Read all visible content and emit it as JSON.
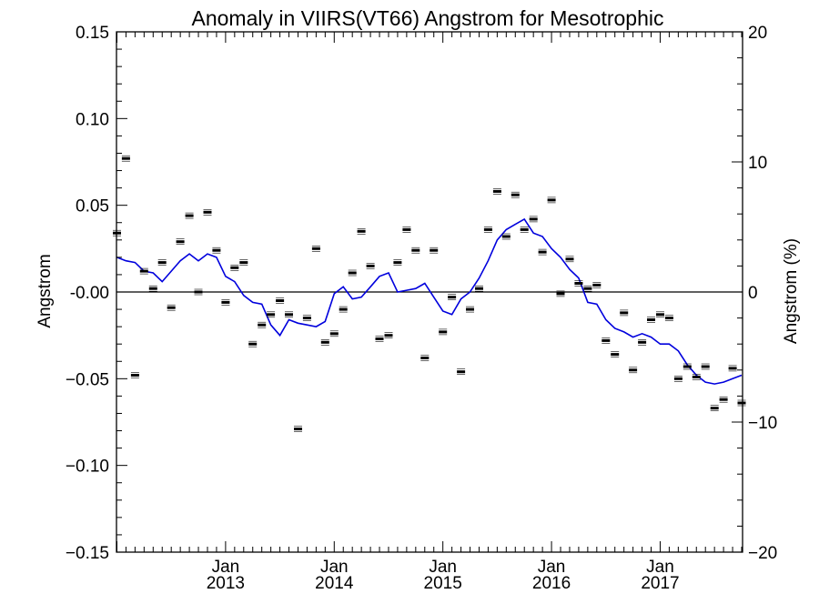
{
  "chart_data": {
    "type": "scatter",
    "title": "Anomaly in VIIRS(VT66) Angstrom for Mesotrophic",
    "ylabel": "Angstrom",
    "y2label": "Angstrom (%)",
    "ylim": [
      -0.15,
      0.15
    ],
    "y2lim": [
      -20,
      20
    ],
    "xlim": [
      "2012-01",
      "2017-10"
    ],
    "yticks": [
      "0.15",
      "0.10",
      "0.05",
      "-0.00",
      "−0.05",
      "−0.10",
      "−0.15"
    ],
    "yticks_values": [
      0.15,
      0.1,
      0.05,
      0.0,
      -0.05,
      -0.1,
      -0.15
    ],
    "y2ticks": [
      "20",
      "10",
      "0",
      "−10",
      "−20"
    ],
    "y2ticks_values": [
      20,
      10,
      0,
      -10,
      -20
    ],
    "xticks": [
      {
        "date": "2013-01",
        "month": "Jan",
        "year": "2013"
      },
      {
        "date": "2014-01",
        "month": "Jan",
        "year": "2014"
      },
      {
        "date": "2015-01",
        "month": "Jan",
        "year": "2015"
      },
      {
        "date": "2016-01",
        "month": "Jan",
        "year": "2016"
      },
      {
        "date": "2017-01",
        "month": "Jan",
        "year": "2017"
      }
    ],
    "grid": false,
    "series": [
      {
        "kind": "points",
        "color": "#000000",
        "points": [
          [
            "2012-01",
            0.034
          ],
          [
            "2012-02",
            0.077
          ],
          [
            "2012-03",
            -0.048
          ],
          [
            "2012-04",
            0.012
          ],
          [
            "2012-05",
            0.002
          ],
          [
            "2012-06",
            0.017
          ],
          [
            "2012-07",
            -0.009
          ],
          [
            "2012-08",
            0.029
          ],
          [
            "2012-09",
            0.044
          ],
          [
            "2012-10",
            0.0
          ],
          [
            "2012-11",
            0.046
          ],
          [
            "2012-12",
            0.024
          ],
          [
            "2013-01",
            -0.006
          ],
          [
            "2013-02",
            0.014
          ],
          [
            "2013-03",
            0.017
          ],
          [
            "2013-04",
            -0.03
          ],
          [
            "2013-05",
            -0.019
          ],
          [
            "2013-06",
            -0.013
          ],
          [
            "2013-07",
            -0.005
          ],
          [
            "2013-08",
            -0.013
          ],
          [
            "2013-09",
            -0.079
          ],
          [
            "2013-10",
            -0.015
          ],
          [
            "2013-11",
            0.025
          ],
          [
            "2013-12",
            -0.029
          ],
          [
            "2014-01",
            -0.024
          ],
          [
            "2014-02",
            -0.01
          ],
          [
            "2014-03",
            0.011
          ],
          [
            "2014-04",
            0.035
          ],
          [
            "2014-05",
            0.015
          ],
          [
            "2014-06",
            -0.027
          ],
          [
            "2014-07",
            -0.025
          ],
          [
            "2014-08",
            0.017
          ],
          [
            "2014-09",
            0.036
          ],
          [
            "2014-10",
            0.024
          ],
          [
            "2014-11",
            -0.038
          ],
          [
            "2014-12",
            0.024
          ],
          [
            "2015-01",
            -0.023
          ],
          [
            "2015-02",
            -0.003
          ],
          [
            "2015-03",
            -0.046
          ],
          [
            "2015-04",
            -0.01
          ],
          [
            "2015-05",
            0.002
          ],
          [
            "2015-06",
            0.036
          ],
          [
            "2015-07",
            0.058
          ],
          [
            "2015-08",
            0.032
          ],
          [
            "2015-09",
            0.056
          ],
          [
            "2015-10",
            0.036
          ],
          [
            "2015-11",
            0.042
          ],
          [
            "2015-12",
            0.023
          ],
          [
            "2016-01",
            0.053
          ],
          [
            "2016-02",
            -0.001
          ],
          [
            "2016-03",
            0.019
          ],
          [
            "2016-04",
            0.005
          ],
          [
            "2016-05",
            0.002
          ],
          [
            "2016-06",
            0.004
          ],
          [
            "2016-07",
            -0.028
          ],
          [
            "2016-08",
            -0.036
          ],
          [
            "2016-09",
            -0.012
          ],
          [
            "2016-10",
            -0.045
          ],
          [
            "2016-11",
            -0.029
          ],
          [
            "2016-12",
            -0.016
          ],
          [
            "2017-01",
            -0.013
          ],
          [
            "2017-02",
            -0.015
          ],
          [
            "2017-03",
            -0.05
          ],
          [
            "2017-04",
            -0.043
          ],
          [
            "2017-05",
            -0.049
          ],
          [
            "2017-06",
            -0.043
          ],
          [
            "2017-07",
            -0.067
          ],
          [
            "2017-08",
            -0.062
          ],
          [
            "2017-09",
            -0.044
          ],
          [
            "2017-10",
            -0.064
          ]
        ]
      },
      {
        "kind": "line",
        "color": "#0000dd",
        "points": [
          [
            "2012-01",
            0.02
          ],
          [
            "2012-02",
            0.018
          ],
          [
            "2012-03",
            0.017
          ],
          [
            "2012-04",
            0.012
          ],
          [
            "2012-05",
            0.011
          ],
          [
            "2012-06",
            0.006
          ],
          [
            "2012-07",
            0.012
          ],
          [
            "2012-08",
            0.018
          ],
          [
            "2012-09",
            0.022
          ],
          [
            "2012-10",
            0.018
          ],
          [
            "2012-11",
            0.022
          ],
          [
            "2012-12",
            0.02
          ],
          [
            "2013-01",
            0.009
          ],
          [
            "2013-02",
            0.006
          ],
          [
            "2013-03",
            -0.002
          ],
          [
            "2013-04",
            -0.006
          ],
          [
            "2013-05",
            -0.007
          ],
          [
            "2013-06",
            -0.019
          ],
          [
            "2013-07",
            -0.025
          ],
          [
            "2013-08",
            -0.016
          ],
          [
            "2013-09",
            -0.018
          ],
          [
            "2013-10",
            -0.019
          ],
          [
            "2013-11",
            -0.02
          ],
          [
            "2013-12",
            -0.017
          ],
          [
            "2014-01",
            -0.001
          ],
          [
            "2014-02",
            0.003
          ],
          [
            "2014-03",
            -0.004
          ],
          [
            "2014-04",
            -0.003
          ],
          [
            "2014-05",
            0.003
          ],
          [
            "2014-06",
            0.009
          ],
          [
            "2014-07",
            0.011
          ],
          [
            "2014-08",
            0.0
          ],
          [
            "2014-09",
            0.001
          ],
          [
            "2014-10",
            0.002
          ],
          [
            "2014-11",
            0.005
          ],
          [
            "2014-12",
            -0.003
          ],
          [
            "2015-01",
            -0.011
          ],
          [
            "2015-02",
            -0.013
          ],
          [
            "2015-03",
            -0.004
          ],
          [
            "2015-04",
            0.0
          ],
          [
            "2015-05",
            0.008
          ],
          [
            "2015-06",
            0.018
          ],
          [
            "2015-07",
            0.03
          ],
          [
            "2015-08",
            0.036
          ],
          [
            "2015-09",
            0.039
          ],
          [
            "2015-10",
            0.042
          ],
          [
            "2015-11",
            0.034
          ],
          [
            "2015-12",
            0.032
          ],
          [
            "2016-01",
            0.025
          ],
          [
            "2016-02",
            0.02
          ],
          [
            "2016-03",
            0.013
          ],
          [
            "2016-04",
            0.008
          ],
          [
            "2016-05",
            -0.006
          ],
          [
            "2016-06",
            -0.007
          ],
          [
            "2016-07",
            -0.016
          ],
          [
            "2016-08",
            -0.021
          ],
          [
            "2016-09",
            -0.023
          ],
          [
            "2016-10",
            -0.026
          ],
          [
            "2016-11",
            -0.024
          ],
          [
            "2016-12",
            -0.026
          ],
          [
            "2017-01",
            -0.03
          ],
          [
            "2017-02",
            -0.03
          ],
          [
            "2017-03",
            -0.034
          ],
          [
            "2017-04",
            -0.042
          ],
          [
            "2017-05",
            -0.048
          ],
          [
            "2017-06",
            -0.052
          ],
          [
            "2017-07",
            -0.053
          ],
          [
            "2017-08",
            -0.052
          ],
          [
            "2017-09",
            -0.05
          ],
          [
            "2017-10",
            -0.048
          ]
        ]
      }
    ]
  }
}
